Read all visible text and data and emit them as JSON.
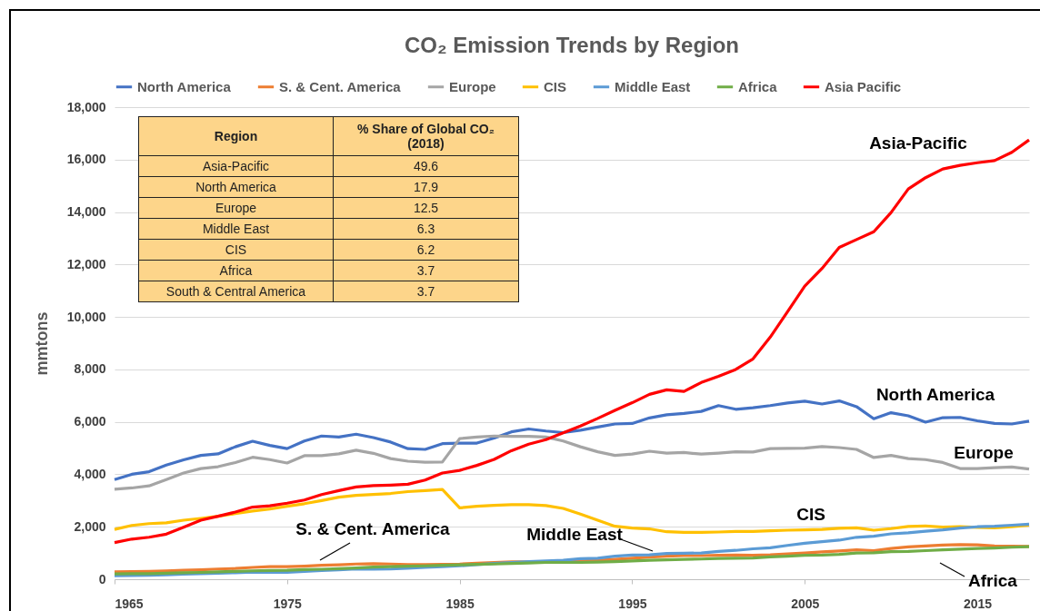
{
  "chart_data": {
    "type": "line",
    "title": "CO₂ Emission Trends by Region",
    "ylabel": "mmtons",
    "x": [
      1965,
      1966,
      1967,
      1968,
      1969,
      1970,
      1971,
      1972,
      1973,
      1974,
      1975,
      1976,
      1977,
      1978,
      1979,
      1980,
      1981,
      1982,
      1983,
      1984,
      1985,
      1986,
      1987,
      1988,
      1989,
      1990,
      1991,
      1992,
      1993,
      1994,
      1995,
      1996,
      1997,
      1998,
      1999,
      2000,
      2001,
      2002,
      2003,
      2004,
      2005,
      2006,
      2007,
      2008,
      2009,
      2010,
      2011,
      2012,
      2013,
      2014,
      2015,
      2016,
      2017,
      2018
    ],
    "xlim": [
      1965,
      2018
    ],
    "xticks": [
      1965,
      1975,
      1985,
      1995,
      2005,
      2015
    ],
    "ylim": [
      0,
      18000
    ],
    "yticks": [
      0,
      {
        "value": 2000,
        "label": "2,000"
      },
      {
        "value": 4000,
        "label": "4,000"
      },
      {
        "value": 6000,
        "label": "6,000"
      },
      {
        "value": 8000,
        "label": "8,000"
      },
      {
        "value": 10000,
        "label": "10,000"
      },
      {
        "value": 12000,
        "label": "12,000"
      },
      {
        "value": 14000,
        "label": "14,000"
      },
      {
        "value": 16000,
        "label": "16,000"
      },
      {
        "value": 18000,
        "label": "18,000"
      }
    ],
    "grid": "y",
    "legend": "top",
    "series": [
      {
        "name": "North America",
        "color": "#4472c4",
        "values": [
          3800,
          4000,
          4100,
          4350,
          4550,
          4720,
          4780,
          5050,
          5260,
          5100,
          4980,
          5270,
          5460,
          5420,
          5530,
          5400,
          5230,
          4980,
          4950,
          5170,
          5190,
          5190,
          5380,
          5620,
          5730,
          5650,
          5590,
          5680,
          5800,
          5920,
          5940,
          6150,
          6270,
          6320,
          6400,
          6620,
          6480,
          6540,
          6620,
          6720,
          6790,
          6680,
          6800,
          6580,
          6120,
          6350,
          6230,
          5990,
          6160,
          6170,
          6040,
          5940,
          5920,
          6030
        ]
      },
      {
        "name": "S. & Cent. America",
        "color": "#ed7d31",
        "values": [
          280,
          290,
          300,
          320,
          340,
          360,
          390,
          410,
          450,
          480,
          480,
          500,
          530,
          550,
          580,
          590,
          580,
          560,
          560,
          570,
          580,
          610,
          640,
          660,
          660,
          660,
          680,
          700,
          720,
          760,
          800,
          840,
          880,
          900,
          900,
          910,
          920,
          910,
          930,
          970,
          1000,
          1040,
          1080,
          1120,
          1090,
          1170,
          1230,
          1270,
          1300,
          1320,
          1310,
          1270,
          1260,
          1250
        ]
      },
      {
        "name": "Europe",
        "color": "#a5a5a5",
        "values": [
          3430,
          3480,
          3560,
          3800,
          4050,
          4220,
          4290,
          4450,
          4650,
          4560,
          4430,
          4710,
          4710,
          4780,
          4920,
          4800,
          4600,
          4500,
          4460,
          4470,
          5360,
          5420,
          5460,
          5450,
          5450,
          5420,
          5270,
          5050,
          4860,
          4720,
          4770,
          4880,
          4810,
          4830,
          4770,
          4810,
          4860,
          4850,
          4980,
          4990,
          5000,
          5060,
          5020,
          4950,
          4640,
          4720,
          4600,
          4560,
          4450,
          4220,
          4220,
          4250,
          4280,
          4200
        ]
      },
      {
        "name": "CIS",
        "color": "#ffc000",
        "values": [
          1900,
          2050,
          2120,
          2150,
          2250,
          2320,
          2400,
          2500,
          2600,
          2680,
          2780,
          2880,
          3000,
          3130,
          3200,
          3230,
          3270,
          3340,
          3380,
          3420,
          2720,
          2780,
          2820,
          2840,
          2840,
          2810,
          2700,
          2480,
          2250,
          2020,
          1950,
          1920,
          1810,
          1790,
          1790,
          1800,
          1820,
          1820,
          1850,
          1870,
          1880,
          1900,
          1940,
          1960,
          1870,
          1930,
          2010,
          2030,
          1990,
          2000,
          1980,
          1960,
          2000,
          2060
        ]
      },
      {
        "name": "Middle East",
        "color": "#5b9bd5",
        "values": [
          130,
          140,
          150,
          170,
          190,
          210,
          230,
          250,
          270,
          260,
          260,
          300,
          330,
          360,
          390,
          380,
          390,
          420,
          450,
          480,
          510,
          560,
          600,
          640,
          670,
          700,
          720,
          780,
          800,
          880,
          920,
          930,
          980,
          990,
          1000,
          1060,
          1100,
          1160,
          1200,
          1290,
          1370,
          1430,
          1490,
          1600,
          1640,
          1730,
          1770,
          1830,
          1880,
          1950,
          2000,
          2020,
          2060,
          2100
        ]
      },
      {
        "name": "Africa",
        "color": "#70ad47",
        "values": [
          200,
          210,
          210,
          230,
          250,
          260,
          280,
          300,
          320,
          330,
          340,
          370,
          380,
          400,
          430,
          460,
          480,
          500,
          510,
          530,
          550,
          570,
          580,
          600,
          620,
          640,
          640,
          640,
          650,
          670,
          700,
          720,
          740,
          760,
          770,
          790,
          800,
          810,
          850,
          880,
          910,
          920,
          950,
          1000,
          1010,
          1050,
          1060,
          1090,
          1120,
          1150,
          1170,
          1190,
          1220,
          1240
        ]
      },
      {
        "name": "Asia Pacific",
        "color": "#ff0000",
        "values": [
          1400,
          1530,
          1600,
          1720,
          1980,
          2250,
          2400,
          2560,
          2750,
          2800,
          2900,
          3020,
          3230,
          3380,
          3520,
          3570,
          3590,
          3620,
          3780,
          4050,
          4150,
          4340,
          4570,
          4900,
          5150,
          5320,
          5580,
          5840,
          6130,
          6440,
          6730,
          7050,
          7220,
          7160,
          7500,
          7740,
          8000,
          8400,
          9230,
          10200,
          11180,
          11850,
          12650,
          12950,
          13250,
          13980,
          14880,
          15310,
          15640,
          15780,
          15880,
          15960,
          16280,
          16750
        ]
      }
    ],
    "annotations": [
      "Asia-Pacific",
      "North America",
      "Europe",
      "CIS",
      "S. & Cent. America",
      "Middle East",
      "Africa",
      "Region",
      "% Share of Global CO₂ (2018)",
      "Asia-Pacific",
      "49.6",
      "North America",
      "17.9",
      "Europe",
      "12.5",
      "Middle East",
      "6.3",
      "CIS",
      "6.2",
      "Africa",
      "3.7",
      "South & Central America",
      "3.7"
    ]
  }
}
